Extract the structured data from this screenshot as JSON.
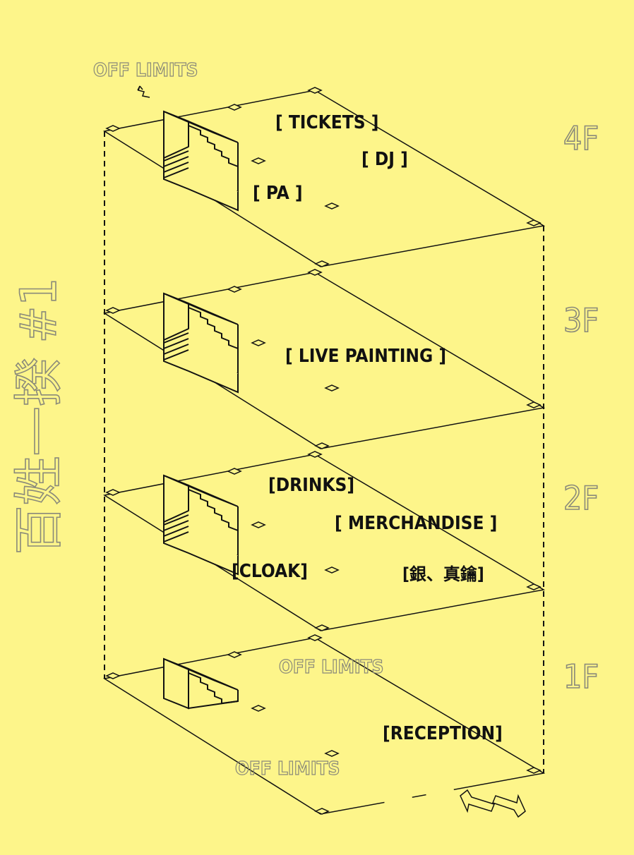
{
  "title": "百姓一揆 #1",
  "floors": [
    {
      "id": "4F",
      "label": "4F",
      "zones": [
        "[ TICKETS ]",
        "[ DJ ]",
        "[ PA ]"
      ]
    },
    {
      "id": "3F",
      "label": "3F",
      "zones": [
        "[ LIVE PAINTING ]"
      ]
    },
    {
      "id": "2F",
      "label": "2F",
      "zones": [
        "[DRINKS]",
        "[ MERCHANDISE ]",
        "[CLOAK]",
        "[銀、真鑰]"
      ]
    },
    {
      "id": "1F",
      "label": "1F",
      "zones": [
        "[RECEPTION]"
      ],
      "off_limits": [
        "OFF LIMITS",
        "OFF LIMITS"
      ]
    }
  ],
  "top_off_limits": "OFF LIMITS",
  "colors": {
    "background": "#fdf58a",
    "line": "#111111",
    "outline_text": "#8a8a7a"
  },
  "icons": [
    "staircase-icon",
    "entrance-arrows-icon",
    "up-arrow-icon"
  ]
}
